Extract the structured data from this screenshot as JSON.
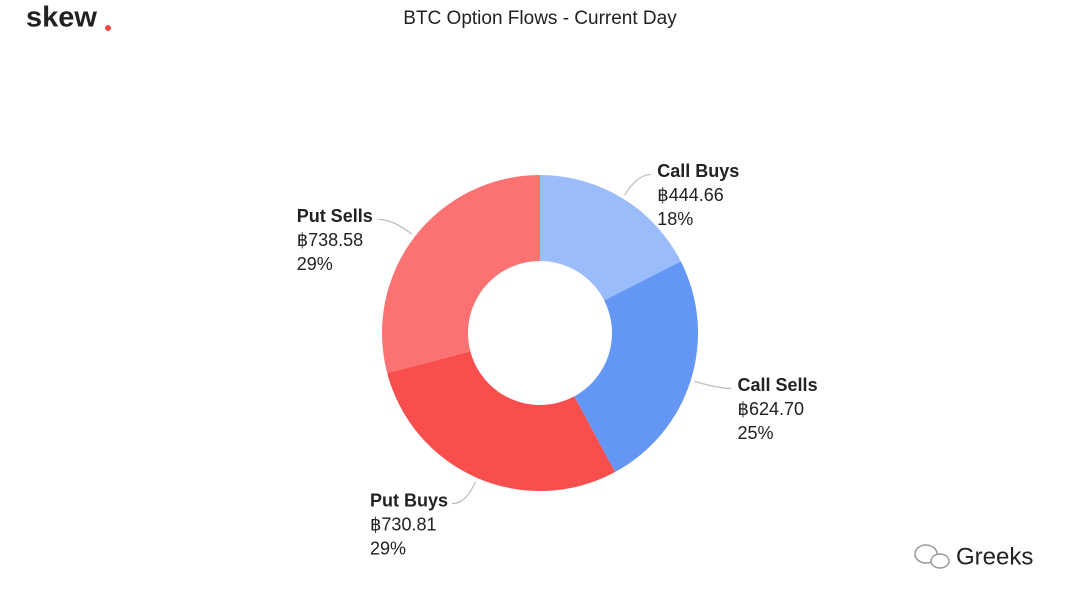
{
  "logo": "skew",
  "watermark": "Greeks",
  "chart_data": {
    "type": "pie",
    "donut": true,
    "title": "BTC Option Flows - Current Day",
    "categories": [
      "Call Buys",
      "Call Sells",
      "Put Buys",
      "Put Sells"
    ],
    "values": [
      444.66,
      624.7,
      730.81,
      738.58
    ],
    "value_labels": [
      "฿444.66",
      "฿624.70",
      "฿730.81",
      "฿738.58"
    ],
    "percent_labels": [
      "18%",
      "25%",
      "29%",
      "29%"
    ],
    "colors": [
      "#9bbcfb",
      "#6497f5",
      "#f84e4e",
      "#fc7171"
    ]
  }
}
